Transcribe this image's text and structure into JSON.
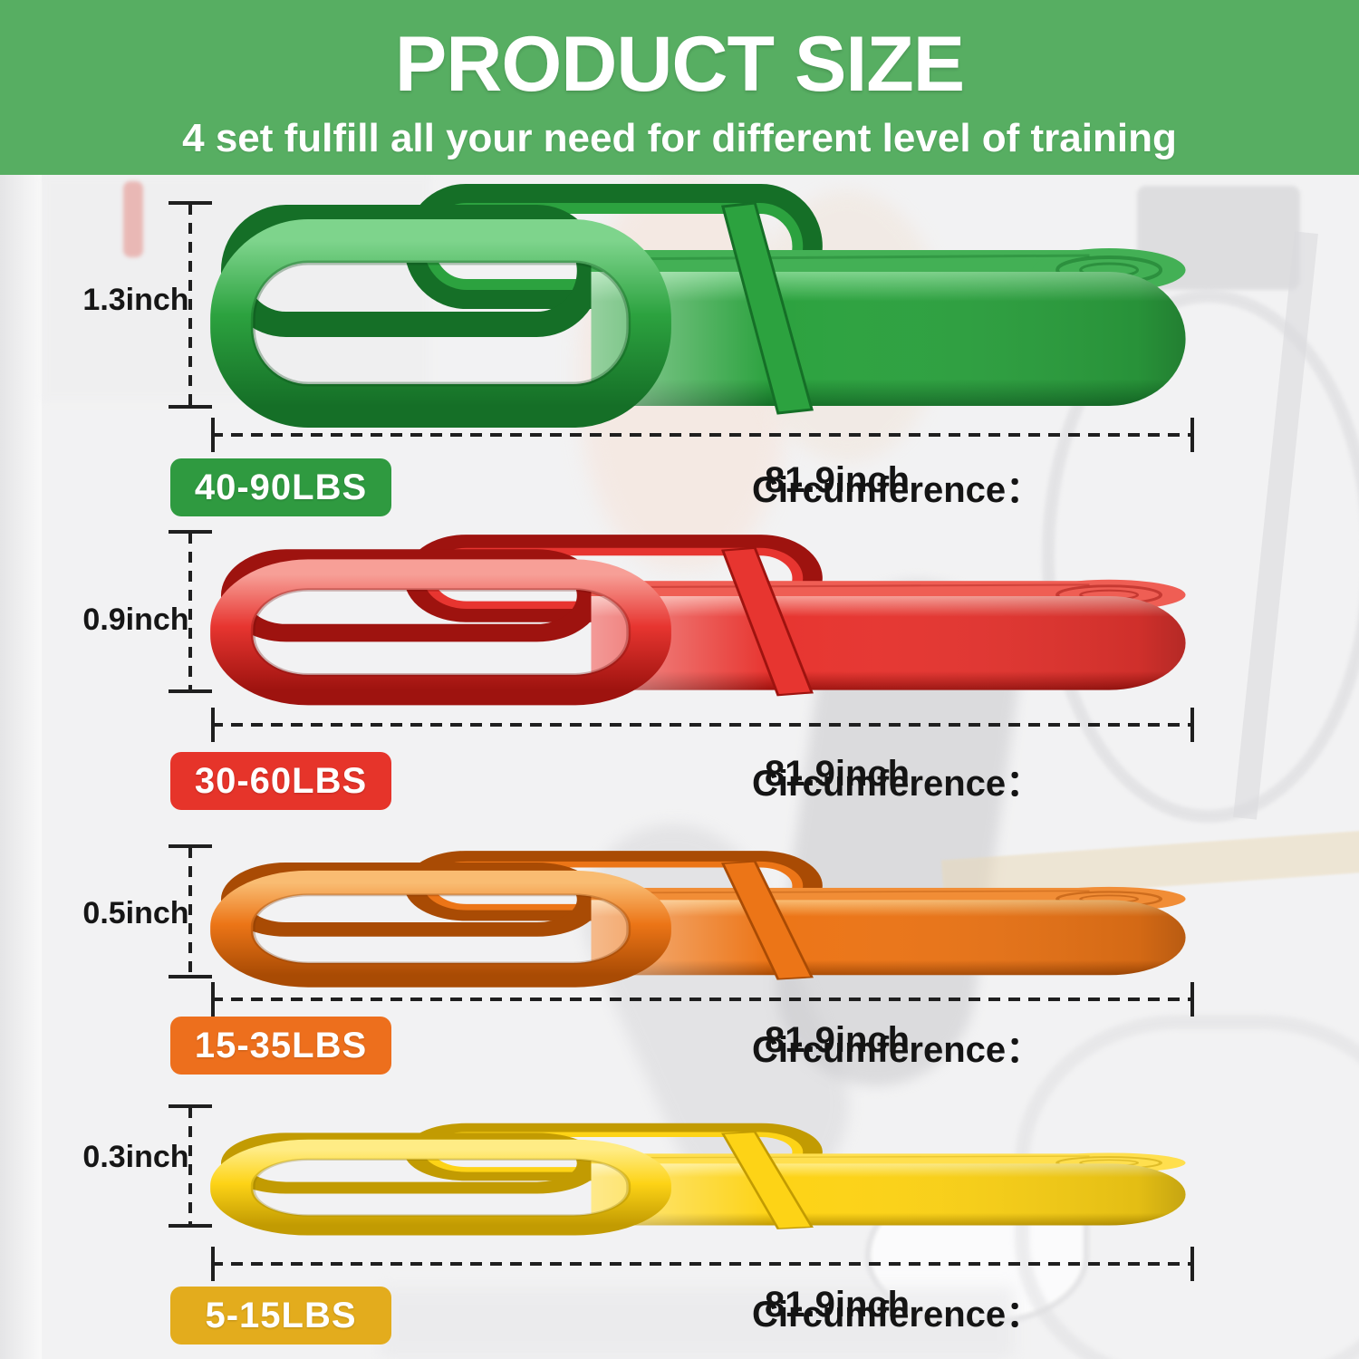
{
  "header": {
    "title": "PRODUCT SIZE",
    "subtitle": "4 set fulfill all your need for different level of training",
    "bg_color": "#57ae62",
    "text_color": "#ffffff"
  },
  "dimension_line_color": "#1f1f1f",
  "bands": [
    {
      "name": "green",
      "thickness_label": "1.3inch",
      "weight_label": "40-90LBS",
      "circumference_label": "Circumference：",
      "circumference_value": "81.9inch",
      "colors": {
        "light": "#7ed48c",
        "base": "#2ca23f",
        "dark": "#156f27",
        "darker": "#0a4418",
        "top": "#43b055",
        "badge": "#2f9a40"
      }
    },
    {
      "name": "red",
      "thickness_label": "0.9inch",
      "weight_label": "30-60LBS",
      "circumference_label": "Circumference：",
      "circumference_value": "81.9inch",
      "colors": {
        "light": "#f79f97",
        "base": "#e73530",
        "dark": "#9e130f",
        "darker": "#6e0c09",
        "top": "#ef5e54",
        "badge": "#e6342a"
      }
    },
    {
      "name": "orange",
      "thickness_label": "0.5inch",
      "weight_label": "15-35LBS",
      "circumference_label": "Circumference：",
      "circumference_value": "81.9inch",
      "colors": {
        "light": "#f9bc72",
        "base": "#ec7517",
        "dark": "#a94b04",
        "darker": "#7c3603",
        "top": "#f18d36",
        "badge": "#ed6f1d"
      }
    },
    {
      "name": "yellow",
      "thickness_label": "0.3inch",
      "weight_label": "5-15LBS",
      "circumference_label": "Circumference：",
      "circumference_value": "81.9inch",
      "colors": {
        "light": "#ffec85",
        "base": "#fdd316",
        "dark": "#c29b02",
        "darker": "#8f7301",
        "top": "#ffdf4e",
        "badge": "#e3ac1d"
      }
    }
  ]
}
